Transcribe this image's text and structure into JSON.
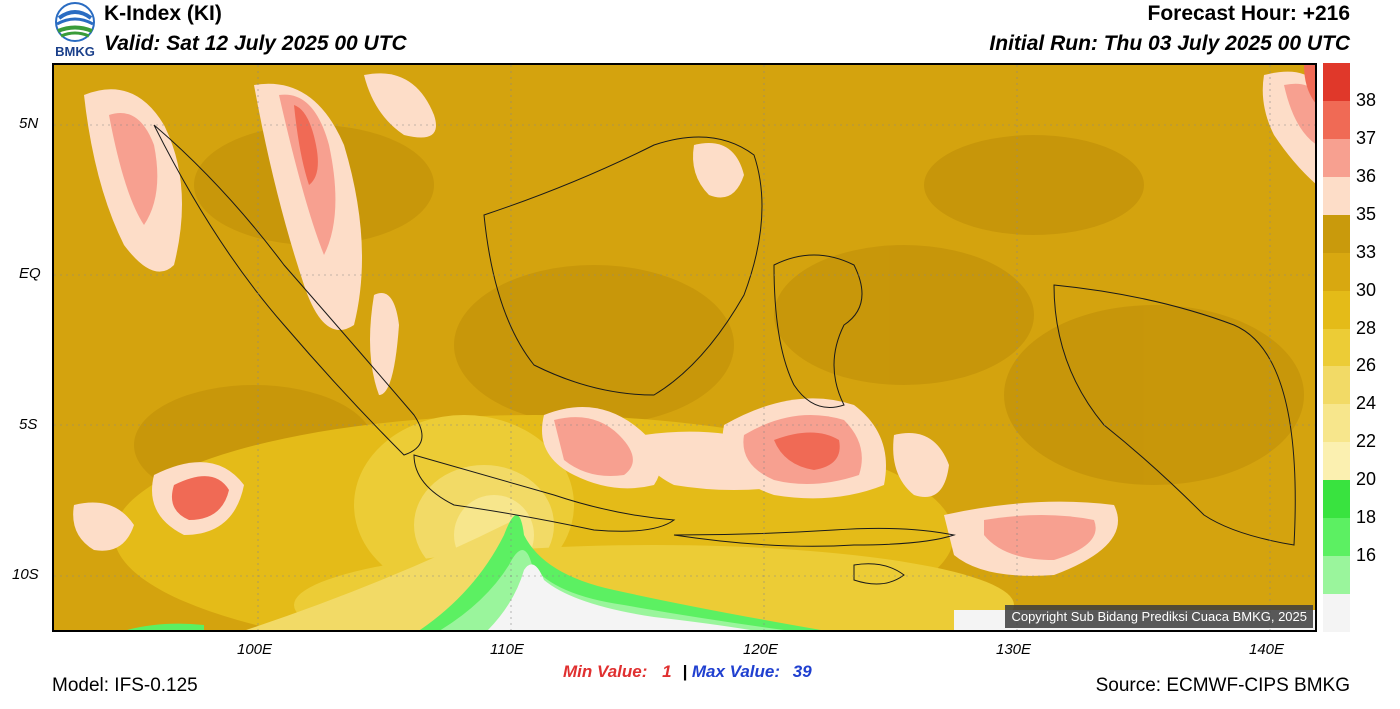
{
  "header": {
    "logo_text": "BMKG",
    "title": "K-Index (KI)",
    "valid": "Valid: Sat 12 July 2025 00 UTC",
    "forecast_hour": "Forecast Hour: +216",
    "initial_run": "Initial Run: Thu 03 July 2025 00 UTC"
  },
  "map": {
    "lat_labels": [
      "5N",
      "EQ",
      "5S",
      "10S"
    ],
    "lon_labels": [
      "100E",
      "110E",
      "120E",
      "130E",
      "140E"
    ],
    "copyright": "Copyright Sub Bidang Prediksi Cuaca BMKG, 2025",
    "background_color": "#d4a30e"
  },
  "colorbar": {
    "levels": [
      "38",
      "37",
      "36",
      "35",
      "33",
      "30",
      "28",
      "26",
      "24",
      "22",
      "20",
      "18",
      "16"
    ],
    "colors": [
      "#e0382a",
      "#f06a55",
      "#f7a090",
      "#fdddc8",
      "#c99a0c",
      "#d8a810",
      "#e4bb18",
      "#eccc36",
      "#f2da66",
      "#f7e68c",
      "#fbf0b0",
      "#39e33f",
      "#5cf062",
      "#9af59c",
      "#f4f4f4"
    ]
  },
  "footer": {
    "model": "Model: IFS-0.125",
    "min_label": "Min Value:",
    "min_value": "1",
    "separator": "|",
    "max_label": "Max Value:",
    "max_value": "39",
    "source": "Source: ECMWF-CIPS BMKG"
  }
}
